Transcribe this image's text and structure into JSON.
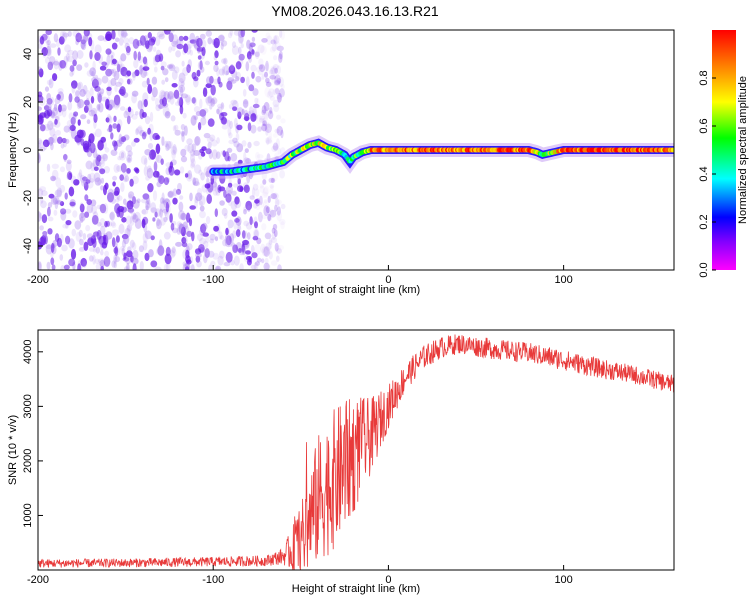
{
  "title": "YM08.2026.043.16.13.R21",
  "colors": {
    "spectro_purple": "#7a2ff0",
    "snr_line": "#e83a3a",
    "axis": "#000000"
  },
  "chart_data": [
    {
      "type": "heatmap",
      "name": "spectrogram",
      "xlabel": "Height of straight line (km)",
      "ylabel": "Frequency (Hz)",
      "xlim": [
        -200,
        163
      ],
      "ylim": [
        -50,
        50
      ],
      "xticks": [
        {
          "value": -200,
          "label": "-200"
        },
        {
          "value": -100,
          "label": "-100"
        },
        {
          "value": 0,
          "label": "0"
        },
        {
          "value": 100,
          "label": "100"
        }
      ],
      "yticks": [
        {
          "value": -40,
          "label": "-40"
        },
        {
          "value": -20,
          "label": "-20"
        },
        {
          "value": 0,
          "label": "0"
        },
        {
          "value": 20,
          "label": "20"
        },
        {
          "value": 40,
          "label": "40"
        }
      ],
      "colorbar": {
        "label": "Normalized spectral amplitude",
        "range": [
          0,
          1
        ],
        "ticks": [
          {
            "value": 0.0,
            "label": "0.0"
          },
          {
            "value": 0.2,
            "label": "0.2"
          },
          {
            "value": 0.4,
            "label": "0.4"
          },
          {
            "value": 0.6,
            "label": "0.6"
          },
          {
            "value": 0.8,
            "label": "0.8"
          }
        ]
      },
      "noise_region": {
        "x_start": -200,
        "x_end": -60
      },
      "signal_track": {
        "x": [
          -100,
          -90,
          -80,
          -70,
          -60,
          -55,
          -50,
          -45,
          -40,
          -35,
          -30,
          -25,
          -22,
          -20,
          -15,
          -10,
          0,
          20,
          40,
          60,
          80,
          85,
          88,
          100,
          120,
          140,
          163
        ],
        "frequency": [
          -9,
          -9,
          -8,
          -7,
          -5,
          -2,
          0,
          2,
          3,
          1,
          0,
          -2,
          -5,
          -3,
          -1,
          0,
          0,
          0,
          0,
          0,
          0,
          -1,
          -2,
          0,
          0,
          0,
          0
        ],
        "amplitude": [
          0.3,
          0.35,
          0.4,
          0.45,
          0.5,
          0.55,
          0.6,
          0.6,
          0.65,
          0.6,
          0.55,
          0.5,
          0.4,
          0.45,
          0.6,
          0.8,
          0.85,
          0.9,
          0.85,
          0.9,
          0.9,
          0.7,
          0.5,
          0.9,
          0.95,
          0.9,
          0.85
        ]
      }
    },
    {
      "type": "line",
      "name": "snr",
      "xlabel": "Height of straight line (km)",
      "ylabel": "SNR (10 * v/v)",
      "xlim": [
        -200,
        163
      ],
      "ylim": [
        0,
        4400
      ],
      "xticks": [
        {
          "value": -200,
          "label": "-200"
        },
        {
          "value": -100,
          "label": "-100"
        },
        {
          "value": 0,
          "label": "0"
        },
        {
          "value": 100,
          "label": "100"
        }
      ],
      "yticks": [
        {
          "value": 1000,
          "label": "1000"
        },
        {
          "value": 2000,
          "label": "2000"
        },
        {
          "value": 3000,
          "label": "3000"
        },
        {
          "value": 4000,
          "label": "4000"
        }
      ],
      "series": [
        {
          "name": "SNR",
          "x": [
            -200,
            -150,
            -100,
            -70,
            -60,
            -50,
            -40,
            -30,
            -20,
            -10,
            0,
            10,
            20,
            30,
            40,
            60,
            80,
            100,
            120,
            140,
            163
          ],
          "y": [
            120,
            130,
            150,
            170,
            250,
            500,
            1300,
            1700,
            2100,
            2450,
            3000,
            3550,
            3900,
            4080,
            4150,
            4050,
            3980,
            3850,
            3700,
            3580,
            3400
          ],
          "noise_amplitude": [
            80,
            80,
            90,
            100,
            150,
            700,
            1200,
            1300,
            1100,
            700,
            400,
            260,
            220,
            200,
            190,
            190,
            190,
            190,
            180,
            170,
            170
          ]
        }
      ]
    }
  ]
}
